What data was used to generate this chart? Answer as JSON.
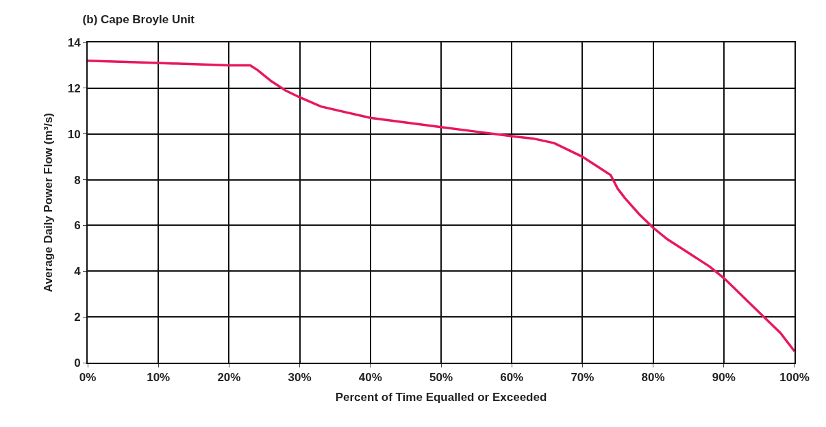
{
  "chart_data": {
    "type": "line",
    "title": "(b) Cape Broyle Unit",
    "xlabel": "Percent of Time Equalled or Exceeded",
    "ylabel": "Average Daily Power Flow (m³/s)",
    "x": [
      0,
      10,
      20,
      23,
      24,
      26,
      28,
      30,
      33,
      40,
      50,
      55,
      60,
      63,
      66,
      68,
      70,
      72,
      74,
      75,
      76,
      78,
      80,
      82,
      85,
      88,
      90,
      92,
      94,
      96,
      98,
      100
    ],
    "series": [
      {
        "color": "#e8185a",
        "values": [
          13.2,
          13.1,
          13.0,
          13.0,
          12.8,
          12.3,
          11.9,
          11.6,
          11.2,
          10.7,
          10.3,
          10.1,
          9.9,
          9.8,
          9.6,
          9.3,
          9.0,
          8.6,
          8.2,
          7.6,
          7.2,
          6.5,
          5.9,
          5.4,
          4.8,
          4.2,
          3.7,
          3.1,
          2.5,
          1.9,
          1.3,
          0.5
        ]
      }
    ],
    "xlim": [
      0,
      100
    ],
    "xticks": [
      {
        "value": 0,
        "label": "0%"
      },
      {
        "value": 10,
        "label": "10%"
      },
      {
        "value": 20,
        "label": "20%"
      },
      {
        "value": 30,
        "label": "30%"
      },
      {
        "value": 40,
        "label": "40%"
      },
      {
        "value": 50,
        "label": "50%"
      },
      {
        "value": 60,
        "label": "60%"
      },
      {
        "value": 70,
        "label": "70%"
      },
      {
        "value": 80,
        "label": "80%"
      },
      {
        "value": 90,
        "label": "90%"
      },
      {
        "value": 100,
        "label": "100%"
      }
    ],
    "ylim": [
      0,
      14
    ],
    "yticks": [
      0,
      2,
      4,
      6,
      8,
      10,
      12,
      14
    ],
    "grid": true,
    "marker": "none",
    "line_style": "solid"
  }
}
